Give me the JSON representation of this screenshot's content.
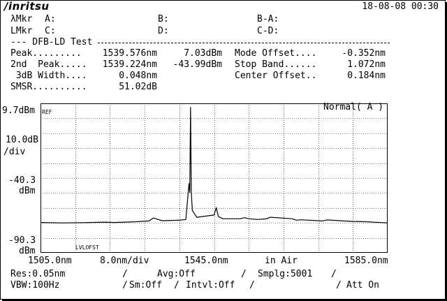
{
  "header": {
    "logo": "/inritsu",
    "datetime": "18-08-08 00:30"
  },
  "markers": {
    "lmkr_label": "λMkr",
    "lmkr_a": "A:",
    "lmkr_b": "B:",
    "lmkr_ba": "B-A:",
    "lvmkr_label": "LMkr",
    "lvmkr_c": "C:",
    "lvmkr_d": "D:",
    "lvmkr_cd": "C-D:"
  },
  "test": {
    "title": "--- DFB-LD Test ",
    "rows": [
      {
        "label": "Peak.........",
        "value1": "1539.576nm",
        "value2": "7.03dBm",
        "label2": "Mode Offset....",
        "value3": "-0.352nm"
      },
      {
        "label": "2nd  Peak.....",
        "value1": "1539.224nm",
        "value2": "-43.99dBm",
        "label2": "Stop Band......",
        "value3": "1.072nm"
      },
      {
        "label": " 3dB Width....",
        "value1": "0.048nm",
        "value2": "",
        "label2": "Center Offset..",
        "value3": "0.184nm"
      },
      {
        "label": "SMSR..........",
        "value1": "51.02dB",
        "value2": "",
        "label2": "",
        "value3": ""
      }
    ]
  },
  "yaxis": {
    "top_value": "9.7dBm",
    "ref_label": "REF",
    "scale_value": "10.0dB",
    "scale_unit": "/div",
    "mid_value": "-40.3",
    "mid_unit": "dBm",
    "bottom_value": "-90.3",
    "bottom_unit": "dBm"
  },
  "plot": {
    "mode_label": "Normal( A )",
    "lvlofst_label": "LVLOFST"
  },
  "xaxis": {
    "start": "1505.0nm",
    "span": "8.0nm/div",
    "center": "1545.0nm",
    "medium": "in Air",
    "stop": "1585.0nm"
  },
  "settings": {
    "res": "Res:0.05nm",
    "avg": "Avg:Off",
    "smplg": "Smplg:5001",
    "vbw": "VBW:100Hz",
    "sm": "Sm:Off",
    "intvl": "Intvl:Off",
    "att": "Att On",
    "sep": "/"
  },
  "chart_data": {
    "type": "line",
    "x_unit": "nm",
    "y_unit": "dBm",
    "xlim": [
      1505.0,
      1585.0
    ],
    "ylim": [
      -90.3,
      9.7
    ],
    "grid": true,
    "series": [
      {
        "x": [
          1505.0,
          1510.0,
          1515.0,
          1520.0,
          1522.0,
          1527.0,
          1530.0,
          1531.0,
          1533.0,
          1537.0,
          1538.5,
          1539.224,
          1539.4,
          1539.576,
          1539.75,
          1540.0,
          1541.0,
          1545.0,
          1545.5,
          1546.0,
          1547.0,
          1551.0,
          1552.0,
          1553.0,
          1555.0,
          1557.0,
          1558.0,
          1563.0,
          1564.0,
          1565.0,
          1570.0,
          1571.0,
          1577.0,
          1580.0,
          1585.0
        ],
        "y": [
          -70.0,
          -70.3,
          -70.1,
          -69.8,
          -70.0,
          -69.5,
          -69.0,
          -67.0,
          -68.8,
          -68.5,
          -68.0,
          -43.99,
          -50.0,
          7.03,
          -50.0,
          -62.0,
          -66.5,
          -65.0,
          -60.0,
          -66.0,
          -67.5,
          -67.5,
          -66.8,
          -67.5,
          -68.0,
          -67.6,
          -66.5,
          -67.5,
          -68.5,
          -68.2,
          -69.0,
          -68.3,
          -69.3,
          -69.5,
          -70.3
        ]
      }
    ]
  }
}
